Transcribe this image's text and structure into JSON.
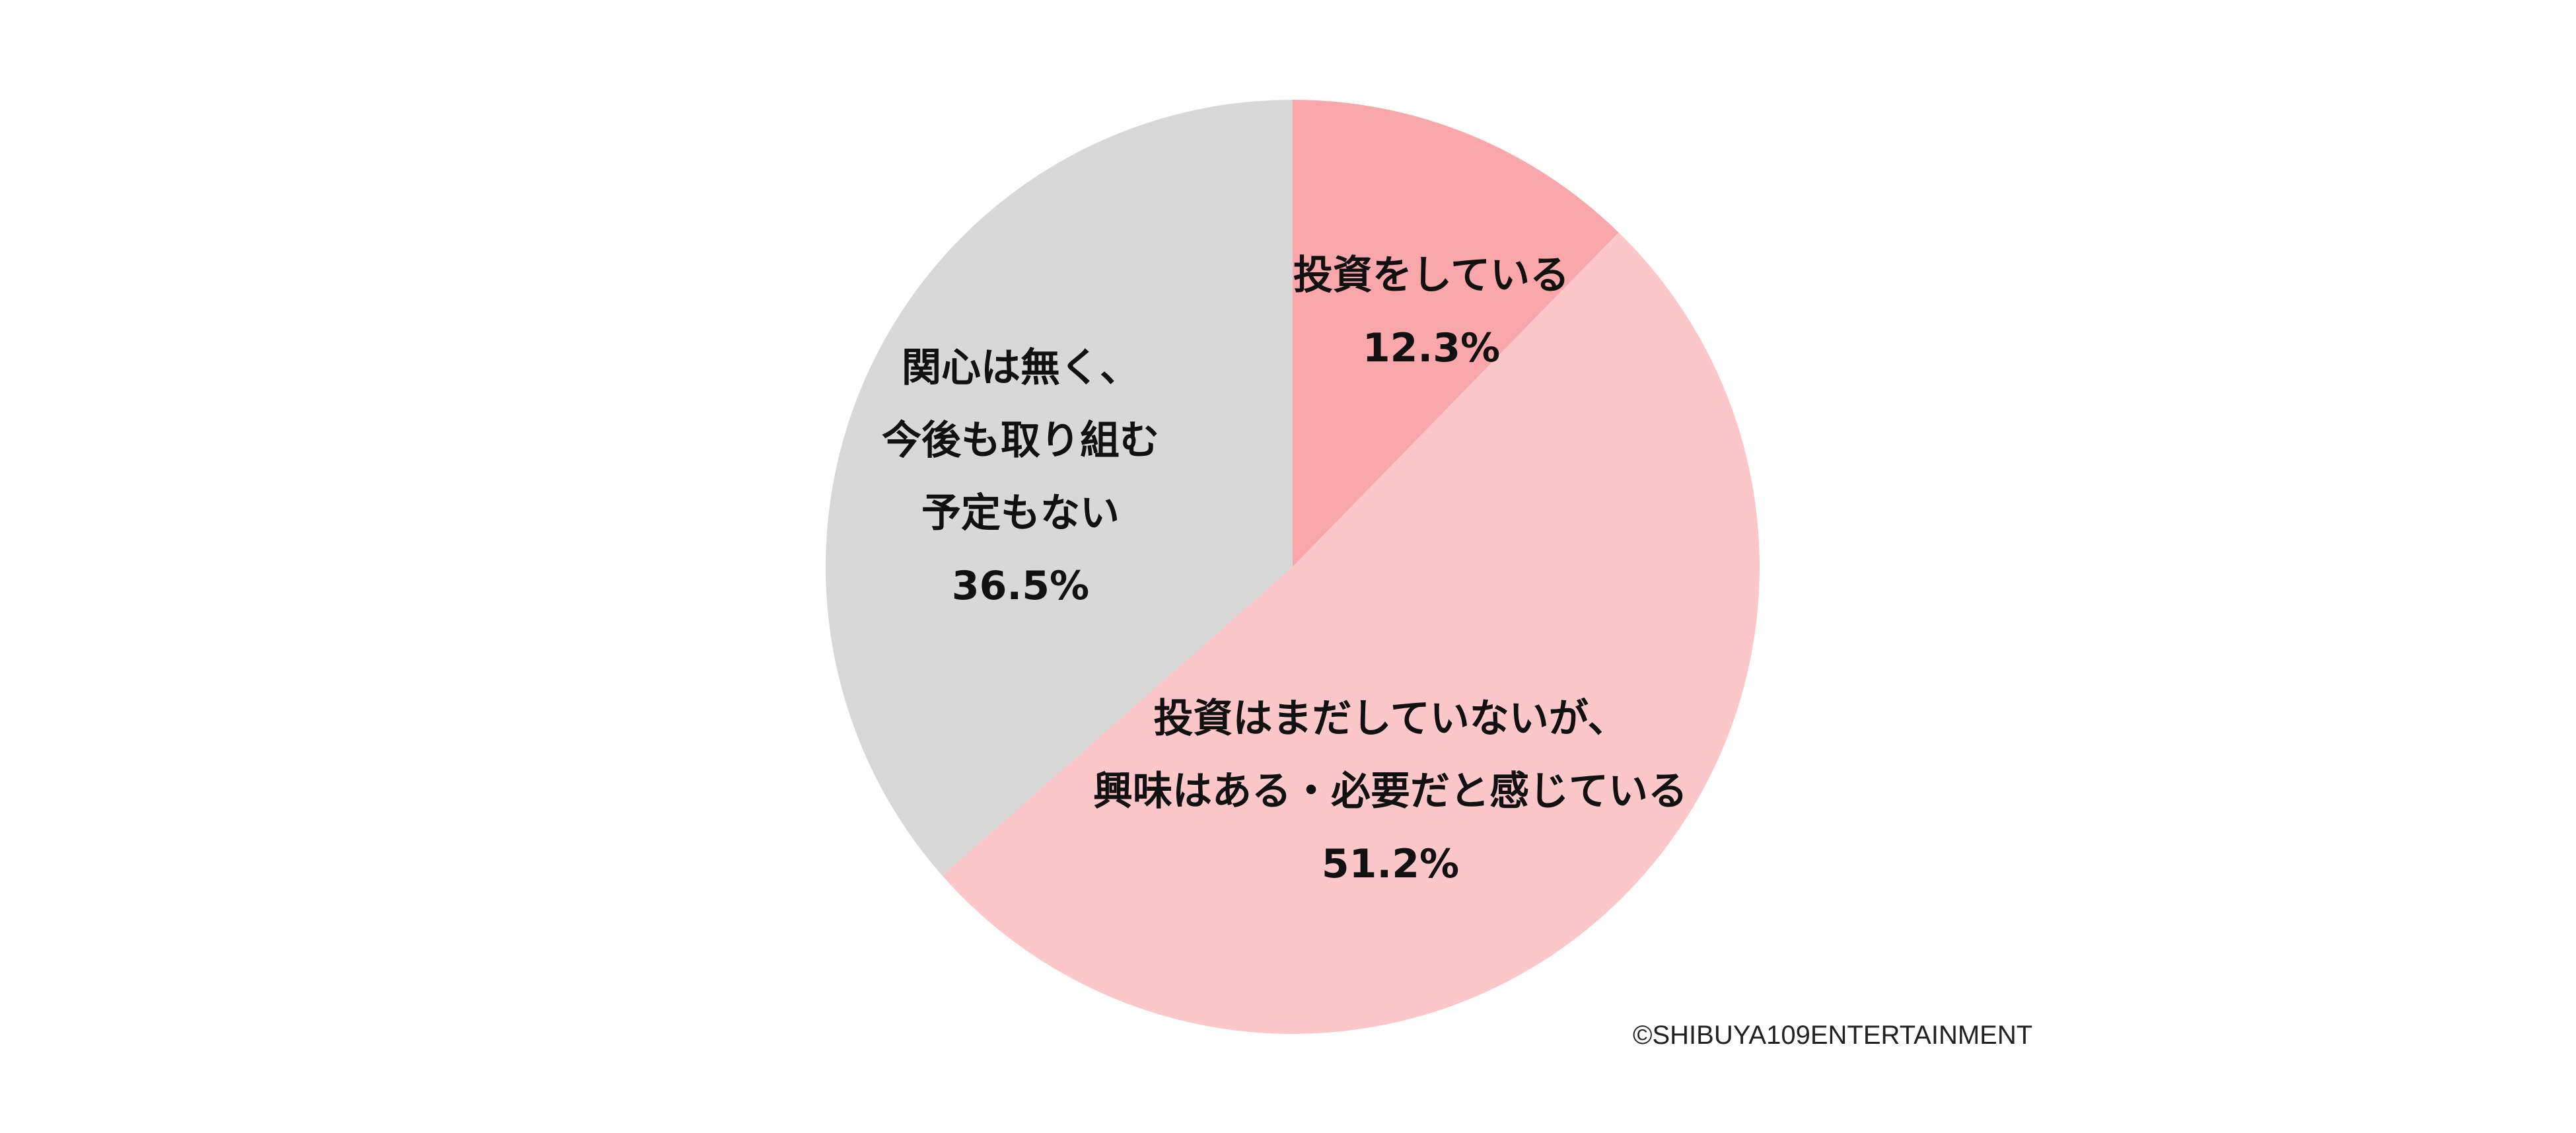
{
  "chart_data": {
    "type": "pie",
    "title": "",
    "slices": [
      {
        "label_lines": [
          "投資をしている"
        ],
        "value": 12.3,
        "value_label": "12.3%",
        "color": "#f9a7aa"
      },
      {
        "label_lines": [
          "投資はまだしていないが、",
          "興味はある・必要だと感じている"
        ],
        "value": 51.2,
        "value_label": "51.2%",
        "color": "#fcc7c9"
      },
      {
        "label_lines": [
          "関心は無く、",
          "今後も取り組む",
          "予定もない"
        ],
        "value": 36.5,
        "value_label": "36.5%",
        "color": "#d8d8d8"
      }
    ],
    "start_angle": "12 o'clock",
    "direction": "clockwise",
    "legend": "none"
  },
  "credit": "©SHIBUYA109ENTERTAINMENT"
}
